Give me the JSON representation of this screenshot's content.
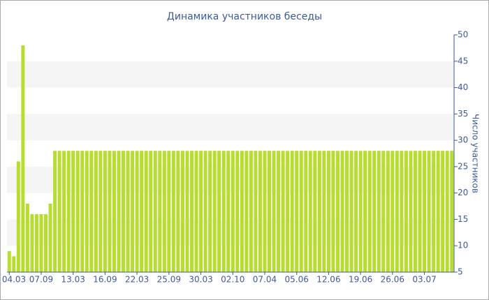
{
  "chart_data": {
    "type": "bar",
    "title": "Динамика участников беседы",
    "y_axis_label": "Число участников",
    "y_axis_side": "right",
    "categories": [
      "04.03",
      null,
      null,
      null,
      null,
      null,
      null,
      "07.09",
      null,
      null,
      null,
      null,
      null,
      null,
      "13.03",
      null,
      null,
      null,
      null,
      null,
      null,
      "16.09",
      null,
      null,
      null,
      null,
      null,
      null,
      "22.03",
      null,
      null,
      null,
      null,
      null,
      null,
      "25.09",
      null,
      null,
      null,
      null,
      null,
      null,
      "30.03",
      null,
      null,
      null,
      null,
      null,
      null,
      "02.10",
      null,
      null,
      null,
      null,
      null,
      null,
      "07.04",
      null,
      null,
      null,
      null,
      null,
      null,
      "05.06",
      null,
      null,
      null,
      null,
      null,
      null,
      "12.06",
      null,
      null,
      null,
      null,
      null,
      null,
      "19.06",
      null,
      null,
      null,
      null,
      null,
      null,
      "26.06",
      null,
      null,
      null,
      null,
      null,
      null,
      "03.07",
      null,
      null,
      null,
      null,
      null,
      null
    ],
    "values": [
      9,
      8,
      26,
      48,
      18,
      16,
      16,
      16,
      16,
      18,
      28,
      28,
      28,
      28,
      28,
      28,
      28,
      28,
      28,
      28,
      28,
      28,
      28,
      28,
      28,
      28,
      28,
      28,
      28,
      28,
      28,
      28,
      28,
      28,
      28,
      28,
      28,
      28,
      28,
      28,
      28,
      28,
      28,
      28,
      28,
      28,
      28,
      28,
      28,
      28,
      28,
      28,
      28,
      28,
      28,
      28,
      28,
      28,
      28,
      28,
      28,
      28,
      28,
      28,
      28,
      28,
      28,
      28,
      28,
      28,
      28,
      28,
      28,
      28,
      28,
      28,
      28,
      28,
      28,
      28,
      28,
      28,
      28,
      28,
      28,
      28,
      28,
      28,
      28,
      28,
      28,
      28,
      28,
      28,
      28,
      28,
      28,
      28
    ],
    "color": "#b7dd2f",
    "ylim": [
      5,
      50
    ],
    "yticks": [
      5,
      10,
      15,
      20,
      25,
      30,
      35,
      40,
      45,
      50
    ],
    "grid": "bands"
  }
}
